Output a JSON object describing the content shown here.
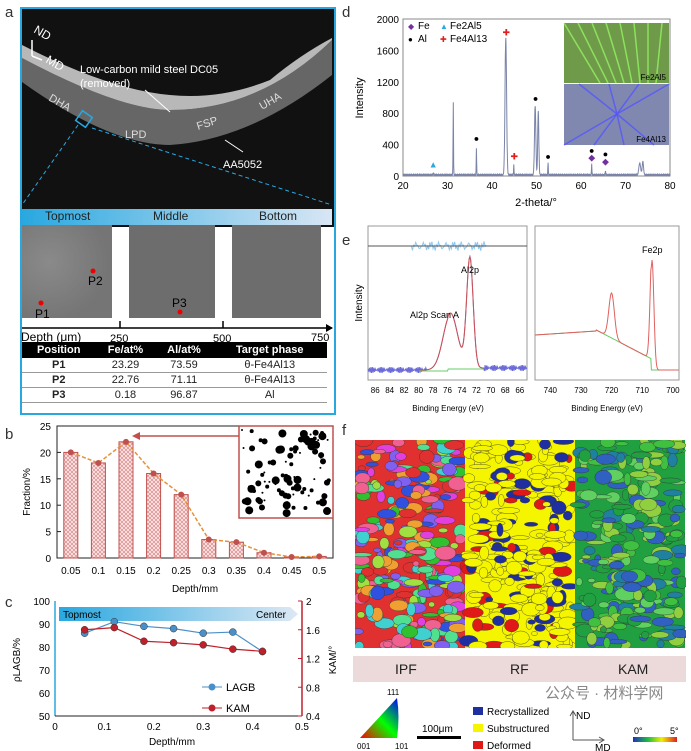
{
  "panel_labels": {
    "a": "a",
    "b": "b",
    "c": "c",
    "d": "d",
    "e": "e",
    "f": "f"
  },
  "panel_a": {
    "orientation": {
      "nd": "ND",
      "md": "MD"
    },
    "steel_label": "Low-carbon mild steel  DC05",
    "steel_note": "(removed)",
    "zones": [
      "DHA",
      "LPD",
      "FSP",
      "UHA"
    ],
    "al_label": "AA5052",
    "strip": [
      "Topmost",
      "Middle",
      "Bottom"
    ],
    "points": [
      "P1",
      "P2",
      "P3"
    ],
    "depth_label": "Depth (μm)",
    "depth_ticks": [
      "250",
      "500",
      "750"
    ],
    "table": {
      "headers": [
        "Position",
        "Fe/at%",
        "Al/at%",
        "Target phase"
      ],
      "rows": [
        [
          "P1",
          "23.29",
          "73.59",
          "θ-Fe4Al13"
        ],
        [
          "P2",
          "22.76",
          "71.11",
          "θ-Fe4Al13"
        ],
        [
          "P3",
          "0.18",
          "96.87",
          "Al"
        ]
      ]
    }
  },
  "chart_data": [
    {
      "id": "b",
      "type": "bar",
      "xlabel": "Depth/mm",
      "ylabel": "Fraction/%",
      "ylim": [
        0,
        25
      ],
      "yticks": [
        0,
        5,
        10,
        15,
        20,
        25
      ],
      "categories": [
        "0.05",
        "0.1",
        "0.15",
        "0.2",
        "0.25",
        "0.3",
        "0.35",
        "0.4",
        "0.45",
        "0.5"
      ],
      "values": [
        20,
        18,
        22,
        16,
        12,
        3.5,
        3,
        1,
        0.2,
        0.3
      ],
      "bar_color": "#c0504d",
      "line_color": "#e69138",
      "grid": false
    },
    {
      "id": "c",
      "type": "line",
      "xlabel": "Depth/mm",
      "ylabel": "ρLAGB/%",
      "y2label": "KAM/°",
      "xlim": [
        0,
        0.5
      ],
      "ylim": [
        50,
        100
      ],
      "y2lim": [
        0.4,
        2
      ],
      "xticks": [
        "0",
        "0.1",
        "0.2",
        "0.3",
        "0.4",
        "0.5"
      ],
      "yticks": [
        "50",
        "60",
        "70",
        "80",
        "90",
        "100"
      ],
      "y2ticks": [
        "0.4",
        "0.8",
        "1.2",
        "1.6",
        "2"
      ],
      "banner": {
        "start": "Topmost",
        "end": "Center"
      },
      "x": [
        0.06,
        0.12,
        0.18,
        0.24,
        0.3,
        0.36,
        0.42
      ],
      "series": [
        {
          "name": "LAGB",
          "axis": "left",
          "color": "#4a90c8",
          "values": [
            86,
            91,
            89,
            88,
            86,
            86.5,
            78
          ]
        },
        {
          "name": "KAM",
          "axis": "right",
          "color": "#c0202a",
          "values": [
            1.6,
            1.63,
            1.44,
            1.42,
            1.39,
            1.33,
            1.3
          ]
        }
      ],
      "legend": "bottom-right"
    },
    {
      "id": "d",
      "type": "line",
      "xlabel": "2-theta/°",
      "ylabel": "Intensity",
      "xlim": [
        20,
        80
      ],
      "ylim": [
        0,
        2000
      ],
      "xticks": [
        "20",
        "30",
        "40",
        "50",
        "60",
        "70",
        "80"
      ],
      "yticks": [
        "0",
        "400",
        "800",
        "1200",
        "1600",
        "2000"
      ],
      "peaks": [
        [
          26.8,
          25,
          0.12
        ],
        [
          31.3,
          920,
          0.1
        ],
        [
          36.5,
          340,
          0.1
        ],
        [
          43.1,
          1750,
          0.35
        ],
        [
          44.9,
          130,
          0.1
        ],
        [
          49.7,
          880,
          0.3
        ],
        [
          50.4,
          820,
          0.25
        ],
        [
          52.6,
          160,
          0.1
        ],
        [
          62.4,
          140,
          0.1
        ],
        [
          65.5,
          55,
          0.1
        ],
        [
          73.2,
          150,
          0.4
        ],
        [
          73.9,
          170,
          0.3
        ]
      ],
      "markers": [
        {
          "phase": "Fe",
          "color": "#7030a0",
          "points": [
            [
              62.4,
              250
            ],
            [
              65.5,
              200
            ]
          ]
        },
        {
          "phase": "Fe2Al5",
          "color": "#29a8e0",
          "points": [
            [
              26.8,
              160
            ]
          ]
        },
        {
          "phase": "Al",
          "color": "#000000",
          "points": [
            [
              36.5,
              490
            ],
            [
              49.8,
              1000
            ],
            [
              52.6,
              260
            ],
            [
              62.4,
              340
            ],
            [
              65.5,
              290
            ]
          ]
        },
        {
          "phase": "Fe4Al13",
          "color": "#e02020",
          "points": [
            [
              43.2,
              1840
            ],
            [
              45,
              260
            ]
          ]
        }
      ],
      "legend": "top-left",
      "insets": [
        "Fe2Al5",
        "Fe4Al13"
      ]
    },
    {
      "id": "e-left",
      "type": "line",
      "xlabel": "Binding Energy (eV)",
      "ylabel": "Intensity",
      "xlim": [
        87,
        65
      ],
      "xticks": [
        "86",
        "84",
        "82",
        "80",
        "78",
        "76",
        "74",
        "72",
        "70",
        "68",
        "66"
      ],
      "annotations": [
        "Al2p",
        "Al2p Scan A"
      ]
    },
    {
      "id": "e-right",
      "type": "line",
      "xlabel": "Binding Energy (eV)",
      "xlim": [
        745,
        698
      ],
      "xticks": [
        "740",
        "730",
        "720",
        "710",
        "700"
      ],
      "annotations": [
        "Fe2p"
      ]
    }
  ],
  "panel_f": {
    "maps": [
      "IPF",
      "RF",
      "KAM"
    ],
    "ipf_corners": [
      "111",
      "001",
      "101"
    ],
    "scale_bar": "100μm",
    "rf_legend": [
      {
        "label": "Recrystallized",
        "color": "#1f2f9f"
      },
      {
        "label": "Substructured",
        "color": "#f5f500"
      },
      {
        "label": "Deformed",
        "color": "#e01818"
      }
    ],
    "axes": {
      "nd": "ND",
      "md": "MD"
    },
    "kam_scale": {
      "min": "0°",
      "max": "5°"
    }
  },
  "watermark": "公众号 · 材料学网"
}
